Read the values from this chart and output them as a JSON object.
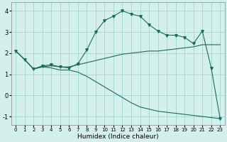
{
  "xlabel": "Humidex (Indice chaleur)",
  "bg_color": "#d4f0eb",
  "line_color": "#1a6b5e",
  "grid_color": "#a0d4cc",
  "xlim": [
    -0.5,
    23.5
  ],
  "ylim": [
    -1.4,
    4.4
  ],
  "xticks": [
    0,
    1,
    2,
    3,
    4,
    5,
    6,
    7,
    8,
    9,
    10,
    11,
    12,
    13,
    14,
    15,
    16,
    17,
    18,
    19,
    20,
    21,
    22,
    23
  ],
  "yticks": [
    -1,
    0,
    1,
    2,
    3,
    4
  ],
  "series1_x": [
    0,
    1,
    2,
    3,
    4,
    5,
    6,
    7,
    8,
    9,
    10,
    11,
    12,
    13,
    14,
    15,
    16,
    17,
    18,
    19,
    20,
    21,
    22,
    23
  ],
  "series1_y": [
    2.1,
    1.7,
    1.25,
    1.4,
    1.45,
    1.35,
    1.3,
    1.5,
    2.15,
    3.0,
    3.55,
    3.75,
    4.0,
    3.85,
    3.75,
    3.35,
    3.05,
    2.85,
    2.85,
    2.75,
    2.45,
    3.05,
    1.3,
    -1.1
  ],
  "series2_x": [
    0,
    1,
    2,
    3,
    4,
    5,
    6,
    7,
    8,
    9,
    10,
    11,
    12,
    13,
    14,
    15,
    16,
    17,
    18,
    19,
    20,
    21,
    22,
    23
  ],
  "series2_y": [
    2.1,
    1.7,
    1.25,
    1.35,
    1.4,
    1.35,
    1.35,
    1.45,
    1.55,
    1.65,
    1.75,
    1.85,
    1.95,
    2.0,
    2.05,
    2.1,
    2.1,
    2.15,
    2.2,
    2.25,
    2.3,
    2.4,
    2.4,
    2.4
  ],
  "series3_x": [
    0,
    1,
    2,
    3,
    4,
    5,
    6,
    7,
    8,
    9,
    10,
    11,
    12,
    13,
    14,
    15,
    16,
    17,
    18,
    19,
    20,
    21,
    22,
    23
  ],
  "series3_y": [
    2.1,
    1.7,
    1.25,
    1.35,
    1.3,
    1.2,
    1.2,
    1.1,
    0.9,
    0.65,
    0.4,
    0.15,
    -0.1,
    -0.35,
    -0.55,
    -0.65,
    -0.75,
    -0.8,
    -0.85,
    -0.9,
    -0.95,
    -1.0,
    -1.05,
    -1.1
  ],
  "figsize": [
    3.2,
    2.0
  ],
  "dpi": 100
}
